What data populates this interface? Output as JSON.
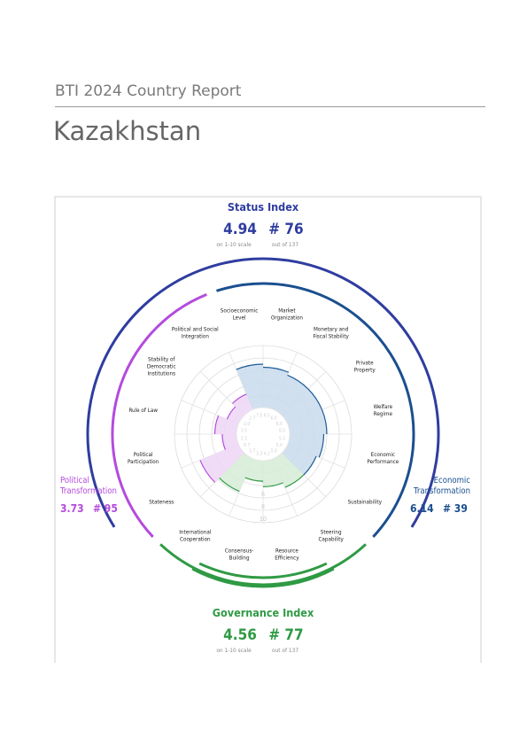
{
  "header": {
    "series": "BTI 2024 Country Report",
    "country": "Kazakhstan"
  },
  "status_index": {
    "title": "Status Index",
    "score": 4.94,
    "rank": "# 76",
    "score_note": "on 1-10 scale",
    "rank_note": "out of 137"
  },
  "governance_index": {
    "title": "Governance Index",
    "score": 4.56,
    "rank": "# 77",
    "score_note": "on 1-10 scale",
    "rank_note": "out of 137"
  },
  "political_transformation": {
    "title_lines": [
      "Political",
      "Transformation"
    ],
    "score": 3.73,
    "rank": "# 95"
  },
  "economic_transformation": {
    "title_lines": [
      "Economic",
      "Transformation"
    ],
    "score": 6.14,
    "rank": "# 39"
  },
  "scale_ticks": [
    2,
    4,
    6,
    8,
    10
  ],
  "criteria": [
    {
      "label_lines": [
        "Market",
        "Organization"
      ],
      "group": "economic",
      "score": {
        "value": 6.5,
        "label": "6.5"
      }
    },
    {
      "label_lines": [
        "Monetary and",
        "Fiscal Stability"
      ],
      "group": "economic",
      "score": {
        "value": 6,
        "label": "6.0"
      }
    },
    {
      "label_lines": [
        "Private",
        "Property"
      ],
      "group": "economic",
      "score": {
        "value": 6,
        "label": "6.0"
      }
    },
    {
      "label_lines": [
        "Welfare",
        "Regime"
      ],
      "group": "economic",
      "score": {
        "value": 6,
        "label": "6.0"
      }
    },
    {
      "label_lines": [
        "Economic",
        "Performance"
      ],
      "group": "economic",
      "score": {
        "value": 5.5,
        "label": "5.5"
      }
    },
    {
      "label_lines": [
        "Sustainability"
      ],
      "group": "economic",
      "score": {
        "value": 5,
        "label": "5.0"
      }
    },
    {
      "label_lines": [
        "Steering",
        "Capability"
      ],
      "group": "governance",
      "score": {
        "value": 5,
        "label": "5.0"
      }
    },
    {
      "label_lines": [
        "Resource",
        "Efficiency"
      ],
      "group": "governance",
      "score": {
        "value": 4.2,
        "label": "4.2"
      }
    },
    {
      "label_lines": [
        "Consensus-",
        "Building"
      ],
      "group": "governance",
      "score": {
        "value": 3.3,
        "label": "3.3"
      }
    },
    {
      "label_lines": [
        "International",
        "Cooperation"
      ],
      "group": "governance",
      "score": {
        "value": 5.7,
        "label": "5.7"
      }
    },
    {
      "label_lines": [
        "Stateness"
      ],
      "group": "political",
      "score": {
        "value": 6.7,
        "label": "6.7"
      }
    },
    {
      "label_lines": [
        "Political",
        "Participation"
      ],
      "group": "political",
      "score": {
        "value": 2.3,
        "label": "2.3"
      }
    },
    {
      "label_lines": [
        "Rule of Law"
      ],
      "group": "political",
      "score": {
        "value": 3.5,
        "label": "3.5"
      }
    },
    {
      "label_lines": [
        "Stability of",
        "Democratic",
        "Institutions"
      ],
      "group": "political",
      "score": {
        "value": 2,
        "label": "2.0"
      }
    },
    {
      "label_lines": [
        "Political and Social",
        "Integration"
      ],
      "group": "political",
      "score": {
        "value": 2.7,
        "label": "2.7"
      }
    },
    {
      "label_lines": [
        "Socioeconomic",
        "Level"
      ],
      "group": "economic",
      "score": {
        "value": 7,
        "label": "7.0"
      }
    }
  ]
}
